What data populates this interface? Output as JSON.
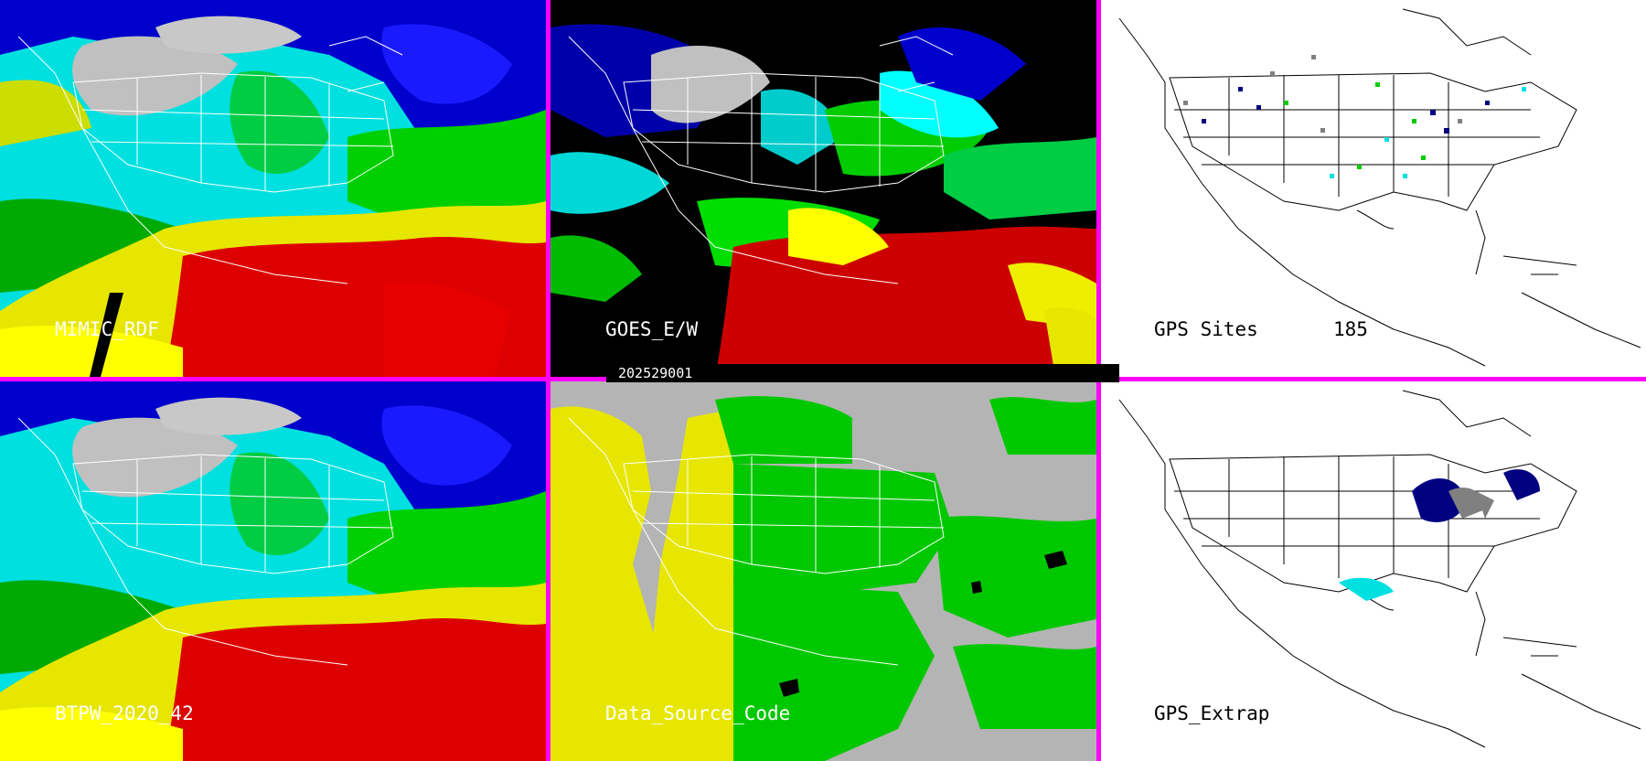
{
  "panels": [
    {
      "id": "mimic",
      "label": "MIMIC_RDF"
    },
    {
      "id": "goes",
      "label": "GOES_E/W"
    },
    {
      "id": "gps-sites",
      "label": "GPS Sites",
      "count": "185"
    },
    {
      "id": "btpw",
      "label": "BTPW_2020_42"
    },
    {
      "id": "dsc",
      "label": "Data_Source_Code"
    },
    {
      "id": "gps-extrap",
      "label": "GPS_Extrap"
    }
  ],
  "timestamp": "202529001",
  "colors": {
    "divider": "#ff00ff",
    "tpw_ramp": [
      "#c8c8c8",
      "#000080",
      "#0000ff",
      "#00e5ff",
      "#00ffcc",
      "#00ff00",
      "#009900",
      "#ffff00",
      "#e60000",
      "#ff00ff"
    ],
    "source_codes": [
      "#b4b4b4",
      "#e6e600",
      "#00c800",
      "#000000"
    ]
  }
}
